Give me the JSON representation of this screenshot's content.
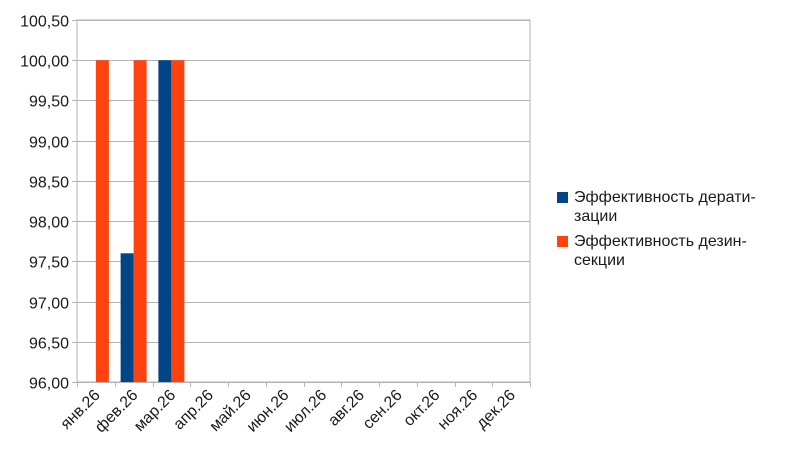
{
  "chart_data": {
    "type": "bar",
    "categories": [
      "янв.26",
      "фев.26",
      "мар.26",
      "апр.26",
      "май.26",
      "июн.26",
      "июл.26",
      "авг.26",
      "сен.26",
      "окт.26",
      "ноя.26",
      "дек.26"
    ],
    "series": [
      {
        "name": "Эффективность дерати-зации",
        "color": "#004586",
        "values": [
          null,
          97.6,
          100.0,
          null,
          null,
          null,
          null,
          null,
          null,
          null,
          null,
          null
        ]
      },
      {
        "name": "Эффективность дезин-секции",
        "color": "#ff420e",
        "values": [
          100.0,
          100.0,
          100.0,
          null,
          null,
          null,
          null,
          null,
          null,
          null,
          null,
          null
        ]
      }
    ],
    "ylim": [
      96.0,
      100.5
    ],
    "yticks": [
      "96,00",
      "96,50",
      "97,00",
      "97,50",
      "98,00",
      "98,50",
      "99,00",
      "99,50",
      "100,00",
      "100,50"
    ],
    "grid": true,
    "legend": "right"
  }
}
